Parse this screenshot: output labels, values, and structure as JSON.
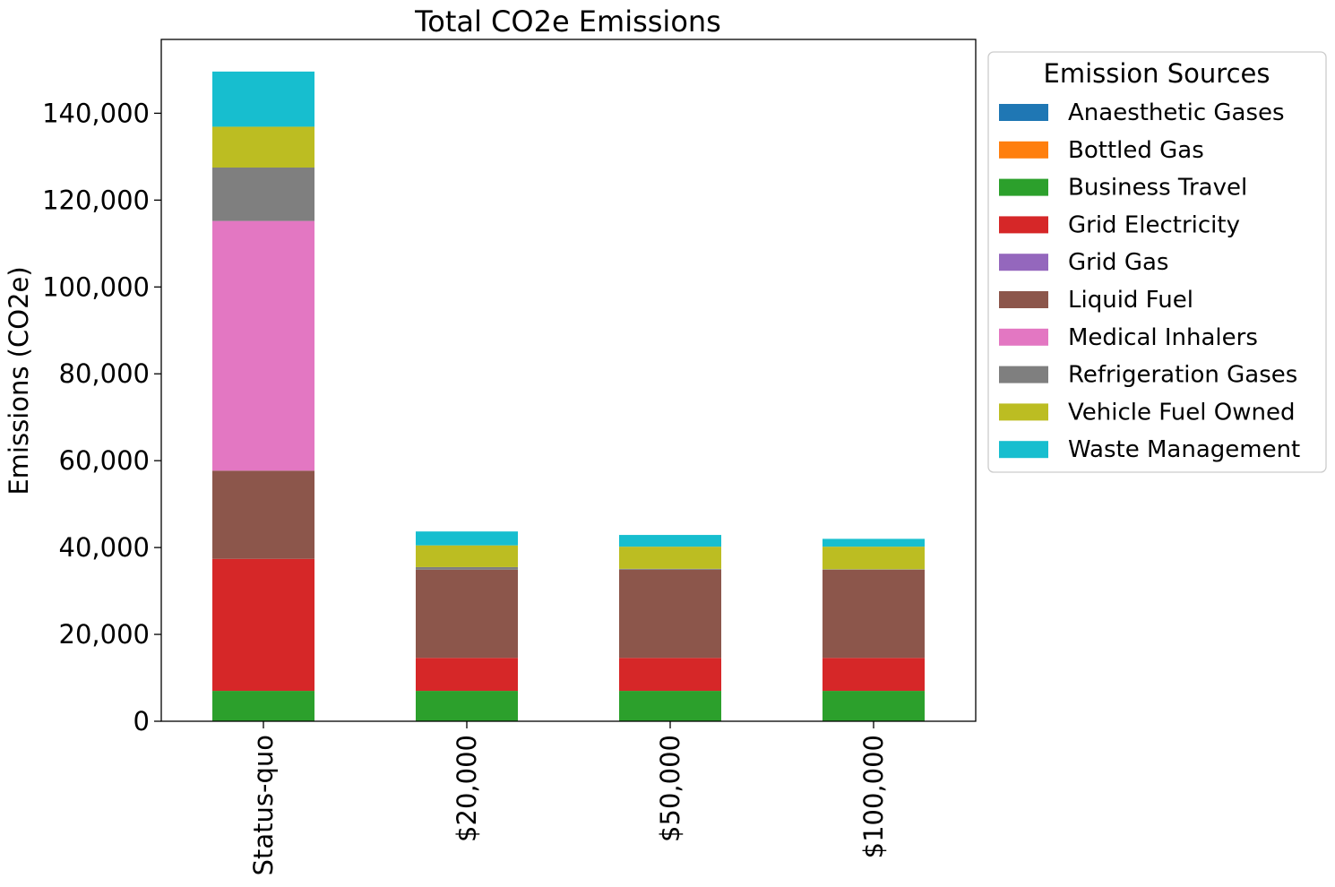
{
  "chart_data": {
    "type": "bar",
    "stacked": true,
    "title": "Total CO2e Emissions",
    "xlabel": "",
    "ylabel": "Emissions (CO2e)",
    "ylim": [
      0,
      157000
    ],
    "yticks": [
      0,
      20000,
      40000,
      60000,
      80000,
      100000,
      120000,
      140000
    ],
    "ytick_labels": [
      "0",
      "20,000",
      "40,000",
      "60,000",
      "80,000",
      "100,000",
      "120,000",
      "140,000"
    ],
    "categories": [
      "Status-quo",
      "$20,000",
      "$50,000",
      "$100,000"
    ],
    "legend": {
      "title": "Emission Sources",
      "placement": "outside-right-top"
    },
    "series": [
      {
        "name": "Anaesthetic Gases",
        "color": "#1f77b4",
        "values": [
          0,
          0,
          0,
          0
        ]
      },
      {
        "name": "Bottled Gas",
        "color": "#ff7f0e",
        "values": [
          0,
          0,
          0,
          0
        ]
      },
      {
        "name": "Business Travel",
        "color": "#2ca02c",
        "values": [
          7000,
          7000,
          7000,
          7000
        ]
      },
      {
        "name": "Grid Electricity",
        "color": "#d62728",
        "values": [
          30400,
          7600,
          7600,
          7600
        ]
      },
      {
        "name": "Grid Gas",
        "color": "#9467bd",
        "values": [
          0,
          0,
          0,
          0
        ]
      },
      {
        "name": "Liquid Fuel",
        "color": "#8c564b",
        "values": [
          20300,
          20300,
          20300,
          20300
        ]
      },
      {
        "name": "Medical Inhalers",
        "color": "#e377c2",
        "values": [
          57500,
          0,
          0,
          0
        ]
      },
      {
        "name": "Refrigeration Gases",
        "color": "#7f7f7f",
        "values": [
          12300,
          600,
          200,
          100
        ]
      },
      {
        "name": "Vehicle Fuel Owned",
        "color": "#bcbd22",
        "values": [
          9400,
          5000,
          5100,
          5200
        ]
      },
      {
        "name": "Waste Management",
        "color": "#17becf",
        "values": [
          12700,
          3200,
          2700,
          1800
        ]
      }
    ]
  }
}
